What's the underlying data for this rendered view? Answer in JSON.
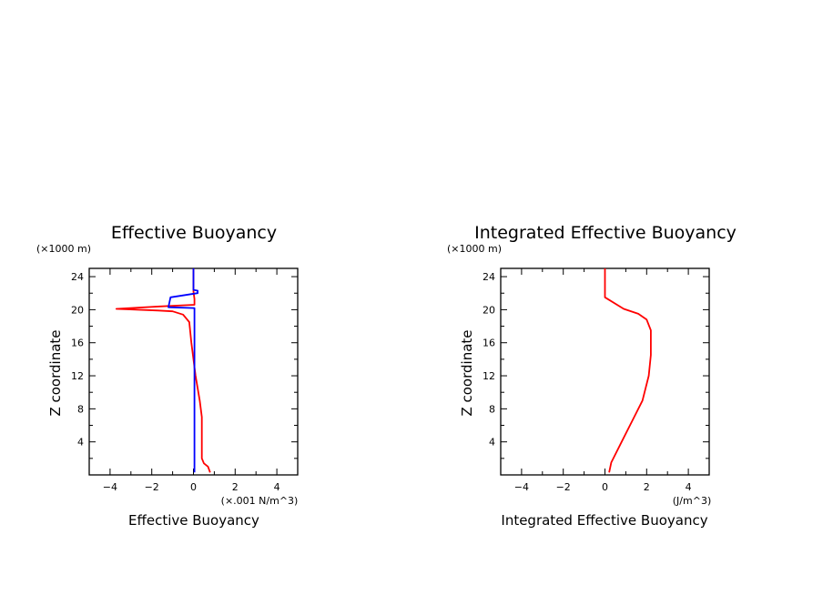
{
  "chart_data": [
    {
      "type": "line",
      "title": "Effective Buoyancy",
      "xlabel": "Effective Buoyancy",
      "ylabel": "Z coordinate",
      "x_unit": "(×.001 N/m^3)",
      "y_unit": "(×1000 m)",
      "xlim": [
        -5,
        5
      ],
      "ylim": [
        0,
        25
      ],
      "xticks": [
        "-4",
        "-2",
        "0",
        "2",
        "4"
      ],
      "yticks": [
        "4",
        "8",
        "12",
        "16",
        "20",
        "24"
      ],
      "colors": {
        "series_1": "#ff0000",
        "series_2": "#0000ff"
      },
      "series": [
        {
          "color": "#ff0000",
          "points": [
            [
              0.0,
              25
            ],
            [
              0.0,
              22.2
            ],
            [
              0.05,
              21.3
            ],
            [
              0.05,
              20.6
            ],
            [
              -1.6,
              20.4
            ],
            [
              -3.7,
              20.1
            ],
            [
              -1.7,
              19.9
            ],
            [
              -1.0,
              19.8
            ],
            [
              -0.5,
              19.4
            ],
            [
              -0.2,
              18.5
            ],
            [
              -0.1,
              16
            ],
            [
              0.1,
              12
            ],
            [
              0.3,
              9
            ],
            [
              0.4,
              7
            ],
            [
              0.4,
              4
            ],
            [
              0.4,
              2
            ],
            [
              0.5,
              1.4
            ],
            [
              0.7,
              1.0
            ],
            [
              0.8,
              0.3
            ]
          ]
        },
        {
          "color": "#0000ff",
          "points": [
            [
              0.05,
              0.3
            ],
            [
              0.05,
              20.2
            ],
            [
              -1.2,
              20.3
            ],
            [
              -1.1,
              21.5
            ],
            [
              0.2,
              22.0
            ],
            [
              0.2,
              22.3
            ],
            [
              0.0,
              22.4
            ],
            [
              0.0,
              25
            ]
          ]
        }
      ]
    },
    {
      "type": "line",
      "title": "Integrated Effective Buoyancy",
      "xlabel": "Integrated Effective Buoyancy",
      "ylabel": "Z coordinate",
      "x_unit": "(J/m^3)",
      "y_unit": "(×1000 m)",
      "xlim": [
        -5,
        5
      ],
      "ylim": [
        0,
        25
      ],
      "xticks": [
        "-4",
        "-2",
        "0",
        "2",
        "4"
      ],
      "yticks": [
        "4",
        "8",
        "12",
        "16",
        "20",
        "24"
      ],
      "colors": {
        "series_1": "#ff0000"
      },
      "series": [
        {
          "color": "#ff0000",
          "points": [
            [
              0.0,
              25
            ],
            [
              0.0,
              21.5
            ],
            [
              0.9,
              20.1
            ],
            [
              1.6,
              19.5
            ],
            [
              2.0,
              18.8
            ],
            [
              2.2,
              17.5
            ],
            [
              2.2,
              14.5
            ],
            [
              2.1,
              12
            ],
            [
              1.8,
              9
            ],
            [
              1.4,
              7
            ],
            [
              0.8,
              4
            ],
            [
              0.3,
              1.5
            ],
            [
              0.2,
              0.3
            ]
          ]
        }
      ]
    }
  ]
}
